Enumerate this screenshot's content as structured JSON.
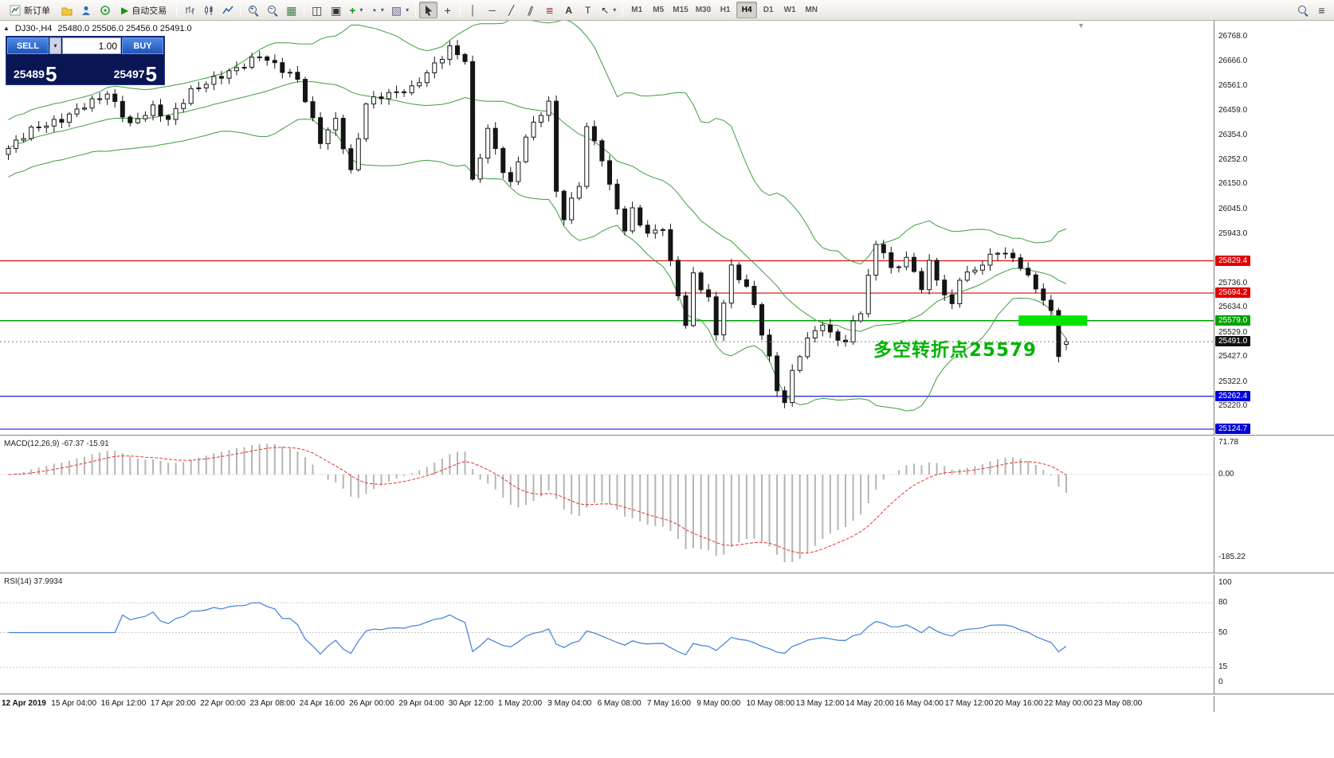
{
  "toolbar": {
    "new_order_label": "新订单",
    "auto_trading_label": "自动交易",
    "timeframes": [
      "M1",
      "M5",
      "M15",
      "M30",
      "H1",
      "H4",
      "D1",
      "W1",
      "MN"
    ],
    "active_timeframe": "H4",
    "icons": {
      "autotrade_play": "▶",
      "dropdown": "▾",
      "grid": "▦",
      "tile_windows": "◫",
      "cascade_windows": "▣",
      "add_indicator": "+",
      "periodicity_clock": "◔",
      "templates": "▧",
      "crosshair": "+",
      "vertical_line": "│",
      "horizontal_line": "─",
      "trend_line": "╱",
      "channel": "∥",
      "fibonacci": "≣",
      "text": "A",
      "text_label": "T",
      "arrow_tool": "↖",
      "menu": "≡"
    }
  },
  "chart": {
    "symbol_period": "DJ30-,H4",
    "ohlc_text": "25480.0 25506.0 25456.0 25491.0",
    "expand_marker": "▲",
    "shift_marker": "▼",
    "annotation": {
      "text": "多空转折点25579",
      "color": "#00b400"
    },
    "levels": [
      {
        "price": 25829.4,
        "label": "25829.4",
        "color": "#e00000"
      },
      {
        "price": 25694.2,
        "label": "25694.2",
        "color": "#e00000"
      },
      {
        "price": 25579.0,
        "label": "25579.0",
        "color": "#00a000"
      },
      {
        "price": 25262.4,
        "label": "25262.4",
        "color": "#0000dd"
      },
      {
        "price": 25124.7,
        "label": "25124.7",
        "color": "#0000dd"
      }
    ],
    "current_price": {
      "value": 25491.0,
      "label": "25491.0",
      "badge_color": "#111111"
    },
    "highlight": {
      "price": 25579.0,
      "from_index": 133,
      "to_index": 142,
      "color": "#00e400"
    },
    "price_scale_labels": [
      "26768.0",
      "26666.0",
      "26561.0",
      "26459.0",
      "26354.0",
      "26252.0",
      "26150.0",
      "26045.0",
      "25943.0",
      "25736.0",
      "25634.0",
      "25529.0",
      "25427.0",
      "25322.0",
      "25220.0"
    ]
  },
  "trade_panel": {
    "sell_label": "SELL",
    "buy_label": "BUY",
    "volume": "1.00",
    "sell_price": {
      "int": "25489",
      "dec": "5"
    },
    "buy_price": {
      "int": "25497",
      "dec": "5"
    }
  },
  "macd_panel": {
    "label": "MACD(12,26,9) -67.37 -15.91",
    "scale_labels": [
      "71.78",
      "0.00",
      "-185.22"
    ]
  },
  "rsi_panel": {
    "label": "RSI(14) 37.9934",
    "scale_labels": [
      "100",
      "80",
      "50",
      "15",
      "0"
    ],
    "levels": [
      80,
      50,
      15
    ]
  },
  "chart_data": {
    "type": "candlestick",
    "symbol": "DJ30-",
    "timeframe": "H4",
    "current_ohlc": {
      "open": 25480.0,
      "high": 25506.0,
      "low": 25456.0,
      "close": 25491.0
    },
    "price_axis": {
      "max": 26768.0,
      "min": 25124.7
    },
    "candle_count": 140,
    "close_waypoints": [
      [
        0,
        26300
      ],
      [
        3,
        26380
      ],
      [
        7,
        26420
      ],
      [
        10,
        26480
      ],
      [
        13,
        26530
      ],
      [
        16,
        26400
      ],
      [
        19,
        26470
      ],
      [
        21,
        26420
      ],
      [
        24,
        26540
      ],
      [
        27,
        26590
      ],
      [
        31,
        26650
      ],
      [
        33,
        26690
      ],
      [
        36,
        26630
      ],
      [
        38,
        26590
      ],
      [
        41,
        26330
      ],
      [
        43,
        26420
      ],
      [
        45,
        26200
      ],
      [
        47,
        26490
      ],
      [
        49,
        26520
      ],
      [
        53,
        26550
      ],
      [
        56,
        26650
      ],
      [
        58,
        26720
      ],
      [
        60,
        26670
      ],
      [
        61,
        26160
      ],
      [
        63,
        26380
      ],
      [
        65,
        26210
      ],
      [
        66,
        26150
      ],
      [
        68,
        26350
      ],
      [
        70,
        26450
      ],
      [
        71,
        26490
      ],
      [
        72,
        26120
      ],
      [
        73,
        26010
      ],
      [
        75,
        26150
      ],
      [
        76,
        26390
      ],
      [
        78,
        26260
      ],
      [
        79,
        26140
      ],
      [
        81,
        25960
      ],
      [
        82,
        26040
      ],
      [
        84,
        25940
      ],
      [
        86,
        25970
      ],
      [
        87,
        25820
      ],
      [
        89,
        25560
      ],
      [
        90,
        25770
      ],
      [
        92,
        25670
      ],
      [
        93,
        25520
      ],
      [
        95,
        25800
      ],
      [
        97,
        25720
      ],
      [
        98,
        25640
      ],
      [
        100,
        25420
      ],
      [
        101,
        25290
      ],
      [
        102,
        25240
      ],
      [
        103,
        25360
      ],
      [
        104,
        25440
      ],
      [
        105,
        25500
      ],
      [
        107,
        25570
      ],
      [
        108,
        25520
      ],
      [
        110,
        25490
      ],
      [
        111,
        25570
      ],
      [
        112,
        25620
      ],
      [
        114,
        25900
      ],
      [
        115,
        25870
      ],
      [
        116,
        25790
      ],
      [
        118,
        25840
      ],
      [
        120,
        25720
      ],
      [
        121,
        25820
      ],
      [
        123,
        25690
      ],
      [
        124,
        25640
      ],
      [
        125,
        25760
      ],
      [
        127,
        25790
      ],
      [
        128,
        25820
      ],
      [
        130,
        25870
      ],
      [
        131,
        25860
      ],
      [
        133,
        25810
      ],
      [
        134,
        25760
      ],
      [
        136,
        25670
      ],
      [
        137,
        25610
      ],
      [
        138,
        25440
      ],
      [
        139,
        25491
      ]
    ],
    "overlays": {
      "bollinger_period": 20,
      "bollinger_deviation": 2,
      "bollinger_color": "#3f9d3f"
    },
    "macd": {
      "fast": 12,
      "slow": 26,
      "signal": 9,
      "main_value": -67.37,
      "signal_value": -15.91,
      "range": [
        -185.22,
        71.78
      ]
    },
    "rsi": {
      "period": 14,
      "value": 37.9934
    },
    "time_labels": [
      "12 Apr 2019",
      "15 Apr 04:00",
      "16 Apr 12:00",
      "17 Apr 20:00",
      "22 Apr 00:00",
      "23 Apr 08:00",
      "24 Apr 16:00",
      "26 Apr 00:00",
      "29 Apr 04:00",
      "30 Apr 12:00",
      "1 May 20:00",
      "3 May 04:00",
      "6 May 08:00",
      "7 May 16:00",
      "9 May 00:00",
      "10 May 08:00",
      "13 May 12:00",
      "14 May 20:00",
      "16 May 04:00",
      "17 May 12:00",
      "20 May 16:00",
      "22 May 00:00",
      "23 May 08:00"
    ]
  }
}
